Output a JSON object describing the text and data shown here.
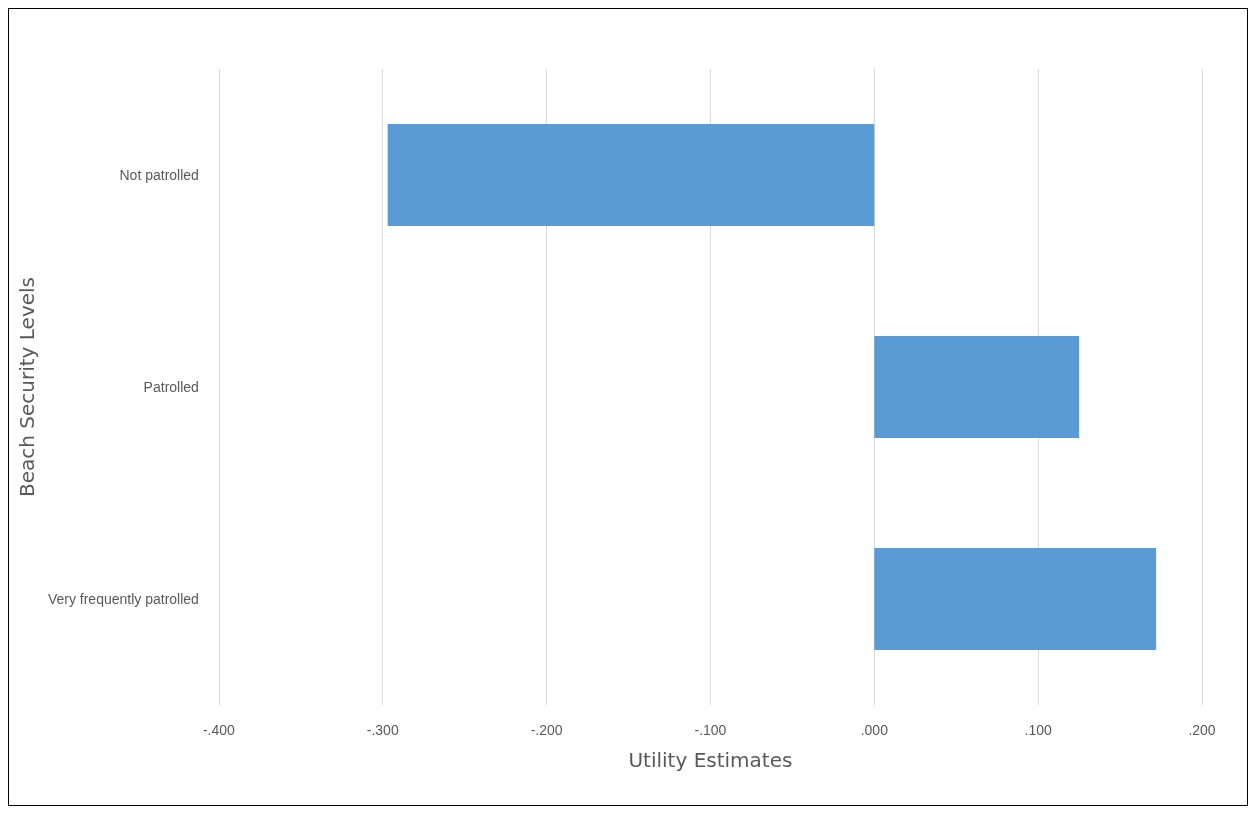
{
  "chart_data": {
    "type": "bar",
    "orientation": "horizontal",
    "xlabel": "Utility Estimates",
    "ylabel": "Beach Security Levels",
    "categories": [
      "Not patrolled",
      "Patrolled",
      "Very frequently patrolled"
    ],
    "values": [
      -0.297,
      0.125,
      0.172
    ],
    "color": "#5b9bd5",
    "xlim": [
      -0.4,
      0.2
    ],
    "xticks": [
      {
        "value": -0.4,
        "label": "-.400"
      },
      {
        "value": -0.3,
        "label": "-.300"
      },
      {
        "value": -0.2,
        "label": "-.200"
      },
      {
        "value": -0.1,
        "label": "-.100"
      },
      {
        "value": 0,
        "label": ".000"
      },
      {
        "value": 0.1,
        "label": ".100"
      },
      {
        "value": 0.2,
        "label": ".200"
      }
    ],
    "grid": "x"
  }
}
